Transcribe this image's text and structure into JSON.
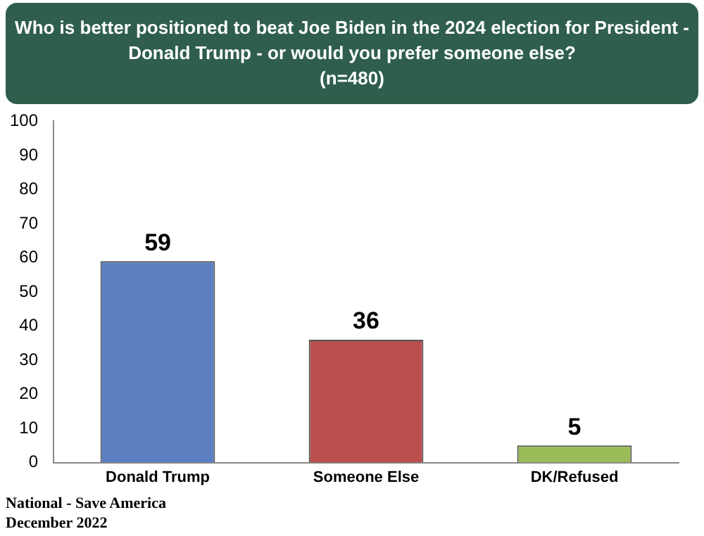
{
  "chart_data": {
    "type": "bar",
    "title": "Who is better positioned to beat Joe Biden in the 2024 election for President - Donald Trump - or would you prefer someone else?\n(n=480)",
    "categories": [
      "Donald Trump",
      "Someone Else",
      "DK/Refused"
    ],
    "values": [
      59,
      36,
      5
    ],
    "colors": [
      "#5b7fc0",
      "#b9504e",
      "#9bbb59"
    ],
    "ylim": [
      0,
      100
    ],
    "yticks": [
      0,
      10,
      20,
      30,
      40,
      50,
      60,
      70,
      80,
      90,
      100
    ],
    "grid": false,
    "legend": false,
    "data_labels": true,
    "annotations": [
      "National - Save America",
      "December 2022"
    ]
  }
}
